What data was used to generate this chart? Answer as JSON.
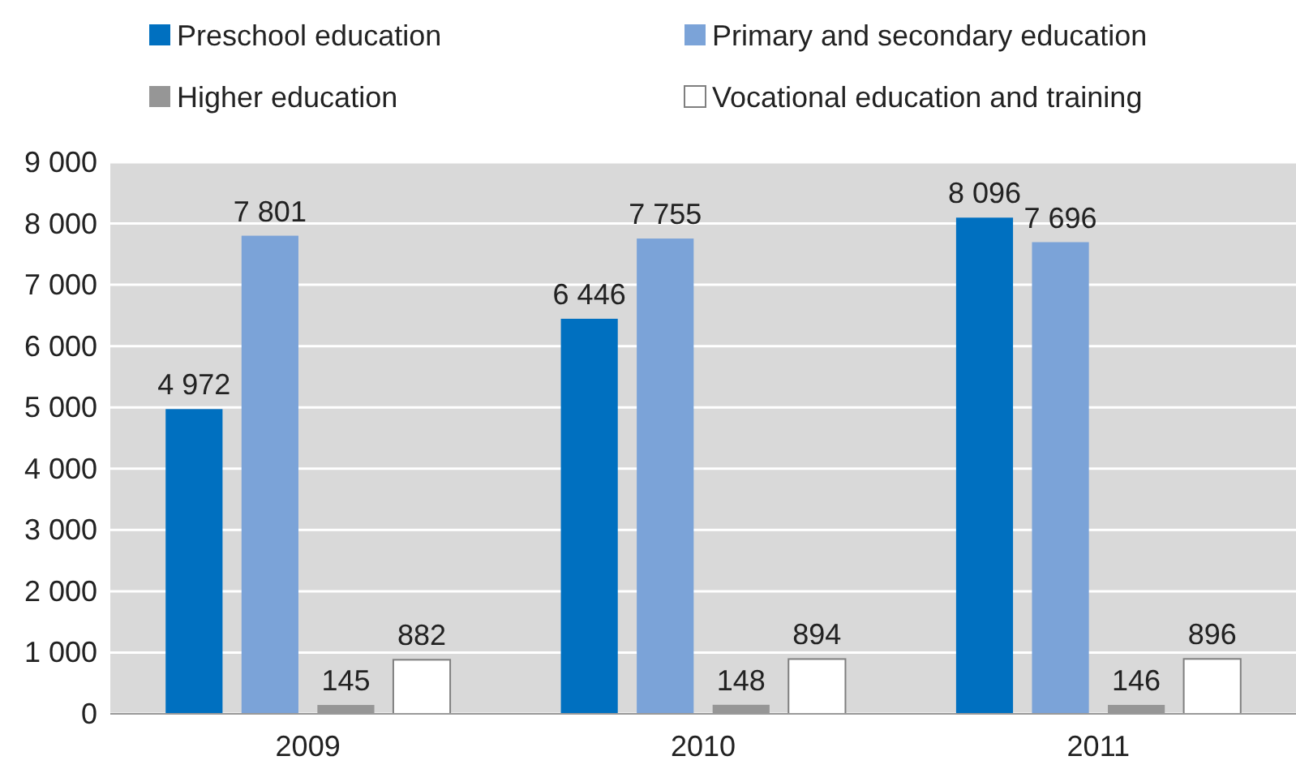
{
  "chart_data": {
    "type": "bar",
    "categories": [
      "2009",
      "2010",
      "2011"
    ],
    "series": [
      {
        "name": "Preschool education",
        "color": "#0070c0",
        "values": [
          4972,
          6446,
          8096
        ],
        "value_labels": [
          "4 972",
          "6 446",
          "8 096"
        ]
      },
      {
        "name": "Primary and secondary education",
        "color": "#7ba3d8",
        "values": [
          7801,
          7755,
          7696
        ],
        "value_labels": [
          "7 801",
          "7 755",
          "7 696"
        ]
      },
      {
        "name": "Higher education",
        "color": "#969696",
        "values": [
          145,
          148,
          146
        ],
        "value_labels": [
          "145",
          "148",
          "146"
        ]
      },
      {
        "name": "Vocational education and training",
        "color": "#ffffff",
        "values": [
          882,
          894,
          896
        ],
        "value_labels": [
          "882",
          "894",
          "896"
        ]
      }
    ],
    "ylim": [
      0,
      9000
    ],
    "yticks": [
      {
        "value": 0,
        "label": "0"
      },
      {
        "value": 1000,
        "label": "1 000"
      },
      {
        "value": 2000,
        "label": "2 000"
      },
      {
        "value": 3000,
        "label": "3 000"
      },
      {
        "value": 4000,
        "label": "4 000"
      },
      {
        "value": 5000,
        "label": "5 000"
      },
      {
        "value": 6000,
        "label": "6 000"
      },
      {
        "value": 7000,
        "label": "7 000"
      },
      {
        "value": 8000,
        "label": "8 000"
      },
      {
        "value": 9000,
        "label": "9 000"
      }
    ],
    "grid": "y",
    "legend": "top"
  }
}
